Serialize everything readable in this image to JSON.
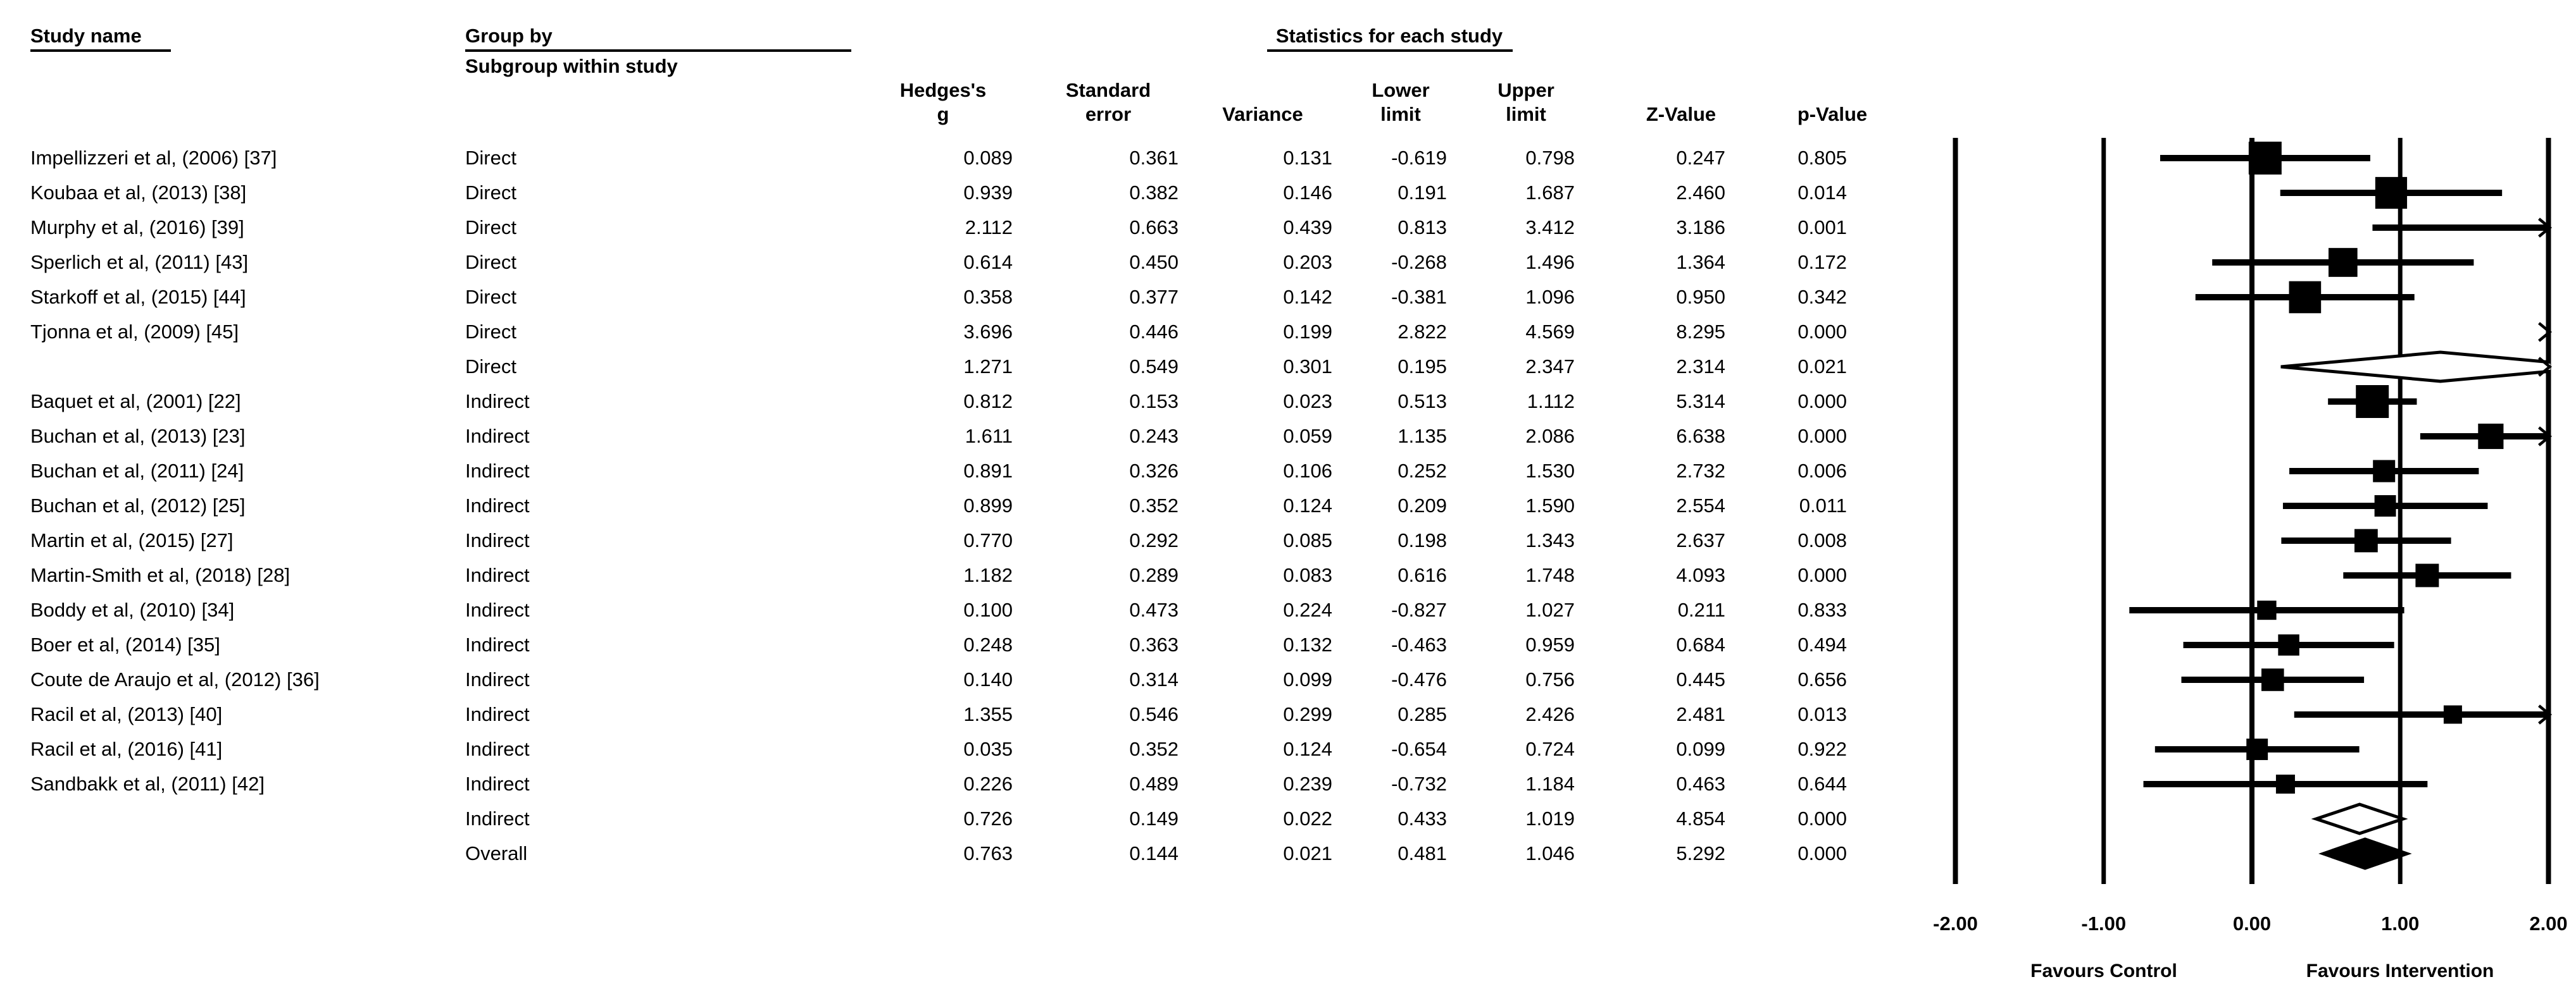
{
  "page": {
    "background": "#ffffff",
    "text_color": "#000000"
  },
  "header": {
    "study_name_label": "Study name",
    "group_by_label": "Group by",
    "group_by_value": "Subgroup within study",
    "statistics_label": "Statistics for each study",
    "stat_columns": [
      {
        "line1": "Hedges's",
        "line2": "g"
      },
      {
        "line1": "Standard",
        "line2": "error"
      },
      {
        "line1": "",
        "line2": "Variance"
      },
      {
        "line1": "Lower",
        "line2": "limit"
      },
      {
        "line1": "Upper",
        "line2": "limit"
      },
      {
        "line1": "",
        "line2": "Z-Value"
      },
      {
        "line1": "",
        "line2": "p-Value"
      }
    ]
  },
  "chart_data": {
    "type": "forest",
    "effect_measure": "Hedges's g",
    "xlim": [
      -2,
      2
    ],
    "x_ticks": [
      -2,
      -1,
      0,
      1,
      2
    ],
    "x_tick_labels": [
      "-2.00",
      "-1.00",
      "0.00",
      "1.00",
      "2.00"
    ],
    "footer_left": "Favours Control",
    "footer_right": "Favours Intervention",
    "marker_color": "#000000",
    "rows": [
      {
        "study": "Impellizzeri et al, (2006) [37]",
        "subgroup": "Direct",
        "g": 0.089,
        "se": 0.361,
        "variance": 0.131,
        "lower": -0.619,
        "upper": 0.798,
        "z": 0.247,
        "p": 0.805,
        "kind": "study"
      },
      {
        "study": "Koubaa et al, (2013) [38]",
        "subgroup": "Direct",
        "g": 0.939,
        "se": 0.382,
        "variance": 0.146,
        "lower": 0.191,
        "upper": 1.687,
        "z": 2.46,
        "p": 0.014,
        "kind": "study"
      },
      {
        "study": "Murphy et al, (2016) [39]",
        "subgroup": "Direct",
        "g": 2.112,
        "se": 0.663,
        "variance": 0.439,
        "lower": 0.813,
        "upper": 3.412,
        "z": 3.186,
        "p": 0.001,
        "kind": "study"
      },
      {
        "study": "Sperlich et al, (2011) [43]",
        "subgroup": "Direct",
        "g": 0.614,
        "se": 0.45,
        "variance": 0.203,
        "lower": -0.268,
        "upper": 1.496,
        "z": 1.364,
        "p": 0.172,
        "kind": "study"
      },
      {
        "study": "Starkoff et al, (2015) [44]",
        "subgroup": "Direct",
        "g": 0.358,
        "se": 0.377,
        "variance": 0.142,
        "lower": -0.381,
        "upper": 1.096,
        "z": 0.95,
        "p": 0.342,
        "kind": "study"
      },
      {
        "study": "Tjonna et al, (2009) [45]",
        "subgroup": "Direct",
        "g": 3.696,
        "se": 0.446,
        "variance": 0.199,
        "lower": 2.822,
        "upper": 4.569,
        "z": 8.295,
        "p": 0.0,
        "kind": "study"
      },
      {
        "study": "",
        "subgroup": "Direct",
        "g": 1.271,
        "se": 0.549,
        "variance": 0.301,
        "lower": 0.195,
        "upper": 2.347,
        "z": 2.314,
        "p": 0.021,
        "kind": "subtotal"
      },
      {
        "study": "Baquet et al, (2001) [22]",
        "subgroup": "Indirect",
        "g": 0.812,
        "se": 0.153,
        "variance": 0.023,
        "lower": 0.513,
        "upper": 1.112,
        "z": 5.314,
        "p": 0.0,
        "kind": "study"
      },
      {
        "study": "Buchan et al, (2013) [23]",
        "subgroup": "Indirect",
        "g": 1.611,
        "se": 0.243,
        "variance": 0.059,
        "lower": 1.135,
        "upper": 2.086,
        "z": 6.638,
        "p": 0.0,
        "kind": "study"
      },
      {
        "study": "Buchan et al, (2011) [24]",
        "subgroup": "Indirect",
        "g": 0.891,
        "se": 0.326,
        "variance": 0.106,
        "lower": 0.252,
        "upper": 1.53,
        "z": 2.732,
        "p": 0.006,
        "kind": "study"
      },
      {
        "study": "Buchan et al, (2012) [25]",
        "subgroup": "Indirect",
        "g": 0.899,
        "se": 0.352,
        "variance": 0.124,
        "lower": 0.209,
        "upper": 1.59,
        "z": 2.554,
        "p": 0.011,
        "kind": "study"
      },
      {
        "study": "Martin et al, (2015) [27]",
        "subgroup": "Indirect",
        "g": 0.77,
        "se": 0.292,
        "variance": 0.085,
        "lower": 0.198,
        "upper": 1.343,
        "z": 2.637,
        "p": 0.008,
        "kind": "study"
      },
      {
        "study": "Martin-Smith et al, (2018) [28]",
        "subgroup": "Indirect",
        "g": 1.182,
        "se": 0.289,
        "variance": 0.083,
        "lower": 0.616,
        "upper": 1.748,
        "z": 4.093,
        "p": 0.0,
        "kind": "study"
      },
      {
        "study": "Boddy et al, (2010) [34]",
        "subgroup": "Indirect",
        "g": 0.1,
        "se": 0.473,
        "variance": 0.224,
        "lower": -0.827,
        "upper": 1.027,
        "z": 0.211,
        "p": 0.833,
        "kind": "study"
      },
      {
        "study": "Boer et al, (2014) [35]",
        "subgroup": "Indirect",
        "g": 0.248,
        "se": 0.363,
        "variance": 0.132,
        "lower": -0.463,
        "upper": 0.959,
        "z": 0.684,
        "p": 0.494,
        "kind": "study"
      },
      {
        "study": "Coute de Araujo et al, (2012) [36]",
        "subgroup": "Indirect",
        "g": 0.14,
        "se": 0.314,
        "variance": 0.099,
        "lower": -0.476,
        "upper": 0.756,
        "z": 0.445,
        "p": 0.656,
        "kind": "study"
      },
      {
        "study": "Racil et al, (2013) [40]",
        "subgroup": "Indirect",
        "g": 1.355,
        "se": 0.546,
        "variance": 0.299,
        "lower": 0.285,
        "upper": 2.426,
        "z": 2.481,
        "p": 0.013,
        "kind": "study"
      },
      {
        "study": "Racil et al, (2016) [41]",
        "subgroup": "Indirect",
        "g": 0.035,
        "se": 0.352,
        "variance": 0.124,
        "lower": -0.654,
        "upper": 0.724,
        "z": 0.099,
        "p": 0.922,
        "kind": "study"
      },
      {
        "study": "Sandbakk et al, (2011) [42]",
        "subgroup": "Indirect",
        "g": 0.226,
        "se": 0.489,
        "variance": 0.239,
        "lower": -0.732,
        "upper": 1.184,
        "z": 0.463,
        "p": 0.644,
        "kind": "study"
      },
      {
        "study": "",
        "subgroup": "Indirect",
        "g": 0.726,
        "se": 0.149,
        "variance": 0.022,
        "lower": 0.433,
        "upper": 1.019,
        "z": 4.854,
        "p": 0.0,
        "kind": "subtotal"
      },
      {
        "study": "",
        "subgroup": "Overall",
        "g": 0.763,
        "se": 0.144,
        "variance": 0.021,
        "lower": 0.481,
        "upper": 1.046,
        "z": 5.292,
        "p": 0.0,
        "kind": "overall"
      }
    ]
  }
}
